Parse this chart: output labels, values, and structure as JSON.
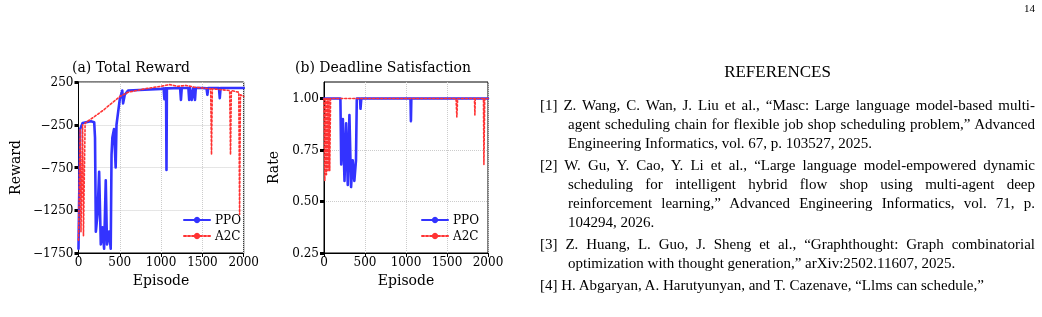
{
  "chart_data": [
    {
      "type": "line",
      "title": "(a) Total Reward",
      "xlabel": "Episode",
      "ylabel": "Reward",
      "xlim": [
        0,
        2000
      ],
      "xticks": [
        0,
        500,
        1000,
        1500,
        2000
      ],
      "ylim": [
        -1750,
        250
      ],
      "yticks": [
        -1750,
        -1250,
        -750,
        -250,
        250
      ],
      "grid": true,
      "legend": "bottom right",
      "series": [
        {
          "name": "PPO",
          "color": "#3333ff",
          "line_style": "solid",
          "x": [
            0,
            20,
            50,
            150,
            190,
            200,
            210,
            230,
            250,
            270,
            290,
            310,
            330,
            345,
            370,
            390,
            400,
            410,
            430,
            450,
            460,
            480,
            500,
            530,
            540,
            560,
            600,
            800,
            1000,
            1030,
            1040,
            1050,
            1060,
            1065,
            1070,
            1230,
            1240,
            1250,
            1330,
            1340,
            1350,
            1370,
            1390,
            1410,
            1420,
            1500,
            1550,
            1560,
            1570,
            1700,
            1710,
            1720,
            2000
          ],
          "values": [
            -1700,
            -300,
            -230,
            -210,
            -220,
            -400,
            -1500,
            -1300,
            -800,
            -1650,
            -1450,
            -1700,
            -900,
            -1650,
            -1500,
            -1700,
            -600,
            -400,
            -300,
            -750,
            -250,
            -100,
            50,
            150,
            0,
            100,
            150,
            160,
            170,
            175,
            50,
            175,
            175,
            -780,
            175,
            180,
            40,
            180,
            180,
            40,
            180,
            40,
            180,
            40,
            180,
            180,
            175,
            100,
            180,
            180,
            60,
            180,
            180
          ]
        },
        {
          "name": "A2C",
          "color": "#ff3333",
          "line_style": "dotted",
          "x": [
            0,
            20,
            30,
            50,
            60,
            80,
            200,
            300,
            400,
            500,
            600,
            800,
            1000,
            1100,
            1200,
            1300,
            1400,
            1500,
            1600,
            1610,
            1620,
            1830,
            1840,
            1850,
            1940,
            1950,
            1960,
            2000
          ],
          "values": [
            -1600,
            -300,
            -1500,
            -250,
            -1550,
            -230,
            -150,
            -80,
            0,
            80,
            130,
            170,
            200,
            220,
            200,
            210,
            190,
            180,
            170,
            -600,
            170,
            150,
            -600,
            150,
            130,
            -1300,
            100,
            80
          ]
        }
      ]
    },
    {
      "type": "line",
      "title": "(b) Deadline Satisfaction",
      "xlabel": "Episode",
      "ylabel": "Rate",
      "xlim": [
        0,
        2000
      ],
      "xticks": [
        0,
        500,
        1000,
        1500,
        2000
      ],
      "ylim": [
        0.25,
        1.08
      ],
      "yticks": [
        {
          "value": 0.25,
          "label": "0.25"
        },
        {
          "value": 0.5,
          "label": "0.50"
        },
        {
          "value": 0.75,
          "label": "0.75"
        },
        {
          "value": 1,
          "label": "1.00"
        }
      ],
      "grid": true,
      "legend": "bottom right",
      "series": [
        {
          "name": "PPO",
          "color": "#3333ff",
          "line_style": "solid",
          "x": [
            0,
            200,
            210,
            230,
            250,
            270,
            290,
            310,
            330,
            350,
            370,
            390,
            400,
            440,
            445,
            455,
            1055,
            1060,
            1065,
            2000
          ],
          "values": [
            1,
            1,
            0.68,
            0.9,
            0.6,
            0.88,
            0.58,
            0.92,
            0.57,
            0.7,
            0.6,
            0.7,
            1,
            1,
            0.95,
            1,
            1,
            0.89,
            1,
            1
          ]
        },
        {
          "name": "A2C",
          "color": "#ff3333",
          "line_style": "dotted",
          "x": [
            0,
            10,
            20,
            30,
            40,
            50,
            60,
            70,
            80,
            1610,
            1620,
            1630,
            1835,
            1840,
            1845,
            1945,
            1950,
            1960,
            2000
          ],
          "values": [
            1,
            0.6,
            1,
            0.63,
            1,
            0.65,
            1,
            0.65,
            1,
            1,
            0.91,
            1,
            1,
            0.92,
            1,
            1,
            0.68,
            1,
            1
          ]
        }
      ]
    },
    {
      "type": "other",
      "title": "REFERENCES",
      "annotations": [
        "[1] Z. Wang, C. Wan, J. Liu et al., “Masc: Large language model-based multi-agent scheduling chain for flexible job shop scheduling problem,” Advanced Engineering Informatics, vol. 67, p. 103527, 2025.",
        "[2] W. Gu, Y. Cao, Y. Li et al., “Large language model-empowered dynamic scheduling for intelligent hybrid flow shop using multi-agent deep reinforcement learning,” Advanced Engineering Informatics, vol. 71, p. 104294, 2026.",
        "[3] Z. Huang, L. Guo, J. Sheng et al., “Graphthought: Graph combinatorial optimization with thought generation,” arXiv:2502.11607, 2025.",
        "[4] H. Abgaryan, A. Harutyunyan, and T. Cazenave, “Llms can schedule,”",
        "14"
      ]
    }
  ]
}
